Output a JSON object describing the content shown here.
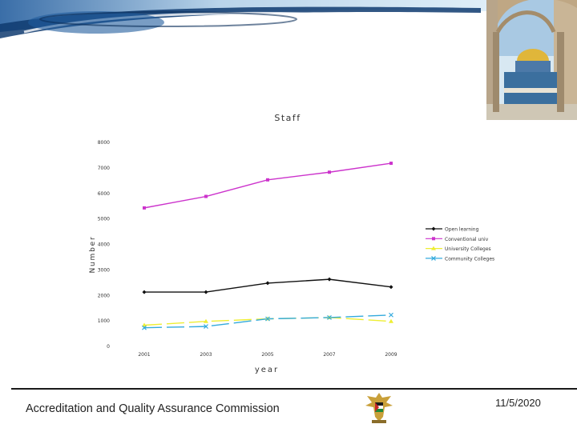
{
  "chart_data": {
    "type": "line",
    "title": "Staff",
    "xlabel": "year",
    "ylabel": "Number",
    "categories": [
      "2001",
      "2003",
      "2005",
      "2007",
      "2009"
    ],
    "yticks": [
      "0",
      "1000",
      "2000",
      "3000",
      "4000",
      "5000",
      "6000",
      "7000",
      "8000"
    ],
    "ylim": [
      0,
      8000
    ],
    "legend_position": "right",
    "series": [
      {
        "name": "Open learning",
        "values": [
          2100,
          2100,
          2450,
          2600,
          2300
        ],
        "color": "#111111",
        "marker": "diamond"
      },
      {
        "name": "Conventional univ",
        "values": [
          5400,
          5850,
          6500,
          6800,
          7150
        ],
        "color": "#cc33cc",
        "marker": "square"
      },
      {
        "name": "University Colleges",
        "values": [
          800,
          950,
          1050,
          1100,
          950
        ],
        "color": "#eeee33",
        "marker": "triangle"
      },
      {
        "name": "Community Colleges",
        "values": [
          700,
          750,
          1050,
          1100,
          1200
        ],
        "color": "#33aadd",
        "marker": "x"
      }
    ]
  },
  "footer": {
    "organization": "Accreditation and Quality Assurance Commission",
    "date": "11/5/2020"
  },
  "decor": {
    "banner": "blue-swoosh-banner",
    "photo": "dome-of-the-rock-photo",
    "emblem": "palestine-eagle-emblem"
  }
}
